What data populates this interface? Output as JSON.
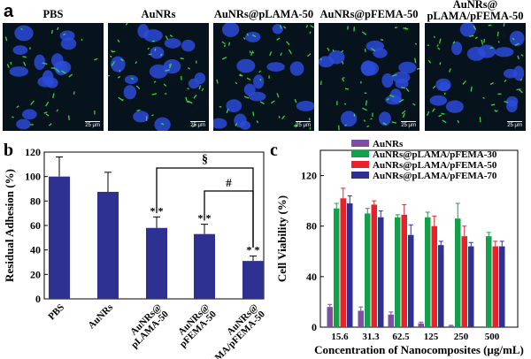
{
  "panel_a": {
    "letter": "a",
    "images": [
      {
        "title": "PBS",
        "scale": "25 μm"
      },
      {
        "title": "AuNRs",
        "scale": "25 μm"
      },
      {
        "title": "AuNRs@pLAMA-50",
        "scale": "25 μm"
      },
      {
        "title": "AuNRs@pFEMA-50",
        "scale": "25 μm"
      },
      {
        "title": "AuNRs@\npLAMA/pFEMA-50",
        "scale": "25 μm"
      }
    ]
  },
  "chart_data": [
    {
      "panel": "b",
      "type": "bar",
      "ylabel": "Residual Adhesion (%)",
      "ylim": [
        0,
        120
      ],
      "yticks": [
        "0",
        "20",
        "40",
        "60",
        "80",
        "100",
        "120"
      ],
      "categories": [
        "PBS",
        "AuNRs",
        "AuNRs@\npLAMA-50",
        "AuNRs@\npFEMA-50",
        "AuNRs@\npLAMA/pFEMA-50"
      ],
      "values": [
        100,
        87.5,
        58,
        53,
        31
      ],
      "errors": [
        16,
        16,
        9,
        8,
        4
      ],
      "significance": [
        "",
        "",
        "* *",
        "* *",
        "* *"
      ],
      "brackets": [
        {
          "label": "§"
        },
        {
          "label": "#"
        }
      ],
      "bar_color": "#2e3192",
      "grid": false
    },
    {
      "panel": "c",
      "type": "bar",
      "ylabel": "Cell Viability (%)",
      "xlabel": "Concentration of Nanocomposites (μg/mL)",
      "ylim": [
        0,
        140
      ],
      "yticks": [
        "0",
        "40",
        "80",
        "120"
      ],
      "categories": [
        "15.6",
        "31.3",
        "62.5",
        "125",
        "250",
        "500"
      ],
      "series": [
        {
          "name": "AuNRs",
          "color": "#7b4fa3",
          "values": [
            16,
            13,
            10,
            3,
            1,
            0
          ],
          "errors": [
            2,
            3,
            2,
            1,
            0.5,
            0
          ]
        },
        {
          "name": "AuNRs@pLAMA/pFEMA-30",
          "color": "#13a04b",
          "values": [
            94,
            90,
            87,
            87,
            86,
            72
          ],
          "errors": [
            4,
            4,
            2,
            4,
            12,
            3
          ]
        },
        {
          "name": "AuNRs@pLAMA/pFEMA-50",
          "color": "#e8222a",
          "values": [
            102,
            97,
            89,
            80,
            72,
            64
          ],
          "errors": [
            8,
            3,
            8,
            8,
            8,
            4
          ]
        },
        {
          "name": "AuNRs@pLAMA/pFEMA-70",
          "color": "#2e3192",
          "values": [
            98,
            87,
            73,
            65,
            64,
            64
          ],
          "errors": [
            6,
            5,
            8,
            3,
            3,
            4
          ]
        }
      ],
      "legend": "top-left",
      "grid": false
    }
  ]
}
